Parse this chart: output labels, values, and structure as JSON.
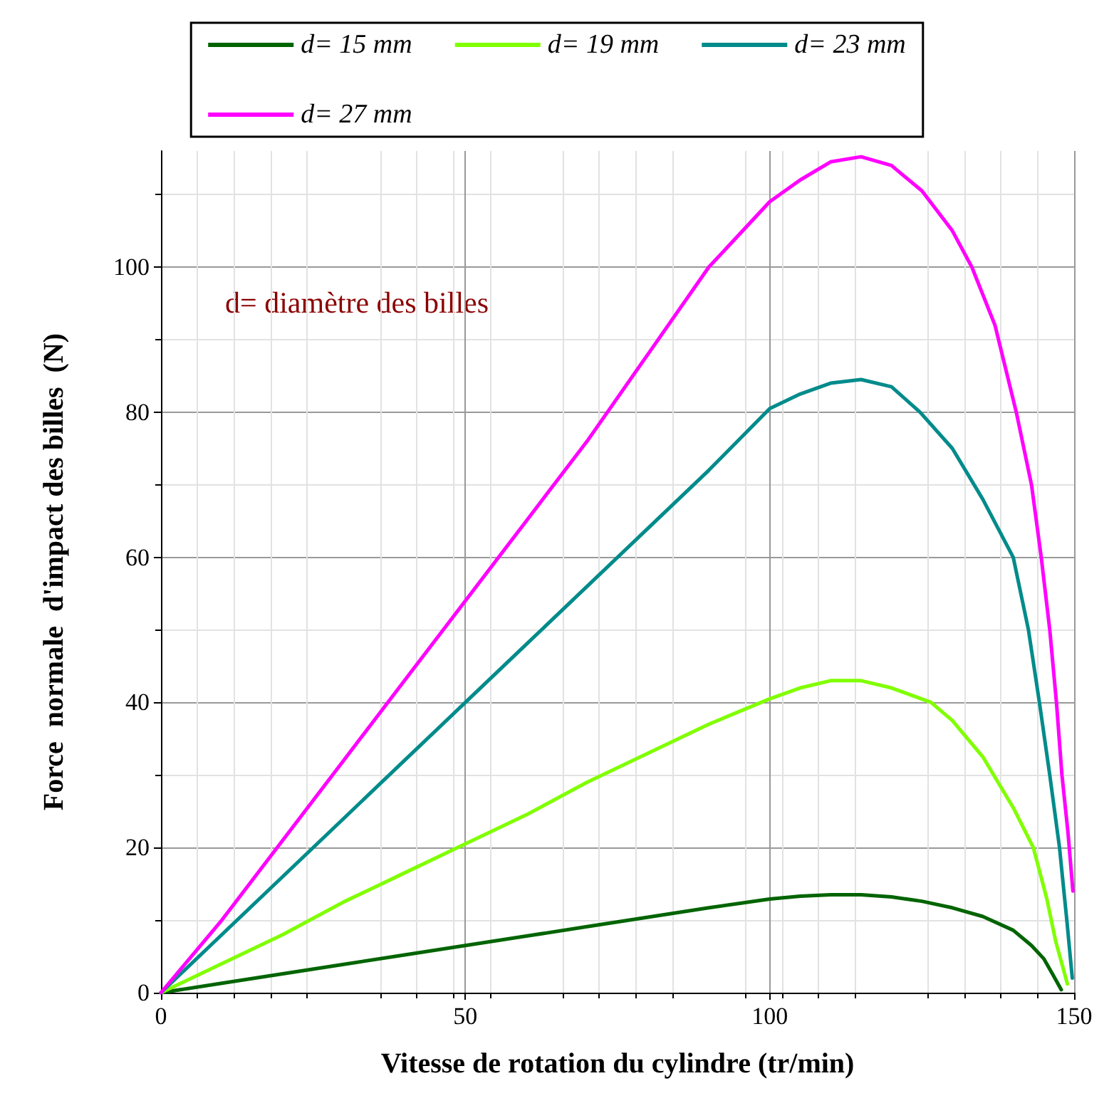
{
  "chart_data": {
    "type": "line",
    "xlabel": "Vitesse de rotation du cylindre (tr/min)",
    "ylabel": "Force  normale  d'impact des billes  (N)",
    "annotations": [
      "d= diamètre des billes"
    ],
    "xlim": [
      0,
      150
    ],
    "xticks": [
      0,
      50,
      100,
      150
    ],
    "ylim": [
      0,
      116
    ],
    "yticks": [
      0,
      20,
      40,
      60,
      80,
      100
    ],
    "grid": true,
    "legend": "top",
    "marker": "none",
    "line_style": "solid",
    "series": [
      {
        "name": "d= 15 mm",
        "color": "#006400",
        "x": [
          0,
          10,
          20,
          30,
          40,
          50,
          60,
          70,
          80,
          90,
          100,
          105,
          110,
          115,
          120,
          125,
          130,
          135,
          140,
          143,
          145,
          146.5,
          147.9
        ],
        "values": [
          0,
          1.3,
          2.6,
          3.9,
          5.2,
          6.5,
          7.8,
          9.1,
          10.4,
          11.7,
          12.9,
          13.3,
          13.5,
          13.5,
          13.2,
          12.6,
          11.7,
          10.5,
          8.6,
          6.5,
          4.7,
          2.5,
          0.4
        ]
      },
      {
        "name": "d= 19 mm",
        "color": "#80ff00",
        "x": [
          0,
          10,
          20,
          30,
          40,
          50,
          60,
          70,
          80,
          90,
          100,
          105,
          110,
          115,
          120,
          126.5,
          130,
          135,
          140,
          143.3,
          145.5,
          147,
          148.9
        ],
        "values": [
          0,
          4,
          8,
          12.5,
          16.5,
          20.5,
          24.5,
          29,
          33,
          37,
          40.5,
          42,
          43,
          43,
          42,
          40,
          37.5,
          32.5,
          25.5,
          20,
          13,
          7,
          1.2
        ]
      },
      {
        "name": "d= 23 mm",
        "color": "#008b8b",
        "x": [
          0,
          10,
          20,
          30,
          40,
          50,
          60,
          70,
          80,
          90,
          100,
          105,
          110,
          115,
          120,
          124.7,
          130,
          135,
          140,
          142.5,
          144.3,
          146,
          147.6,
          148.8,
          149.7
        ],
        "values": [
          0,
          8,
          16,
          24,
          32,
          40,
          48,
          56,
          64,
          72,
          80.5,
          82.5,
          84,
          84.5,
          83.5,
          80,
          75,
          68,
          60,
          50,
          40,
          30,
          20,
          10,
          2
        ]
      },
      {
        "name": "d= 27 mm",
        "color": "#ff00ff",
        "x": [
          0,
          10,
          20,
          30,
          40,
          50,
          60,
          70,
          80,
          90,
          100,
          105,
          110,
          115,
          120,
          125,
          130,
          133.2,
          137,
          140.5,
          143,
          144.6,
          146,
          147.1,
          148,
          149,
          149.8
        ],
        "values": [
          0,
          10,
          21,
          32,
          43,
          54,
          65,
          76,
          88,
          100,
          109,
          112,
          114.5,
          115.2,
          114,
          110.5,
          105,
          100,
          92,
          80,
          70,
          60,
          50,
          40,
          30,
          22,
          14
        ]
      }
    ]
  }
}
